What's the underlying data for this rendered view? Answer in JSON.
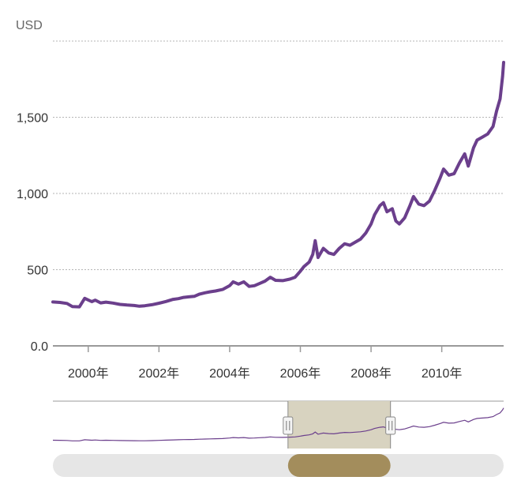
{
  "chart_data": {
    "type": "line",
    "ylabel": "USD",
    "ylim": [
      0,
      2000
    ],
    "y_ticks": [
      {
        "value": 0,
        "label": "0.0"
      },
      {
        "value": 500,
        "label": "500"
      },
      {
        "value": 1000,
        "label": "1,000"
      },
      {
        "value": 1500,
        "label": "1,500"
      },
      {
        "value": 2000,
        "label": ""
      }
    ],
    "x_ticks": [
      {
        "value": 2000,
        "label": "2000年"
      },
      {
        "value": 2002,
        "label": "2002年"
      },
      {
        "value": 2004,
        "label": "2004年"
      },
      {
        "value": 2006,
        "label": "2006年"
      },
      {
        "value": 2008,
        "label": "2008年"
      },
      {
        "value": 2010,
        "label": "2010年"
      }
    ],
    "xlim": [
      1999.0,
      2011.75
    ],
    "grid": true,
    "legend": "none",
    "series": [
      {
        "color": "#6b3f8c",
        "points": [
          [
            1999.0,
            288
          ],
          [
            1999.2,
            285
          ],
          [
            1999.4,
            278
          ],
          [
            1999.55,
            258
          ],
          [
            1999.75,
            256
          ],
          [
            1999.9,
            312
          ],
          [
            2000.1,
            290
          ],
          [
            2000.2,
            300
          ],
          [
            2000.35,
            282
          ],
          [
            2000.5,
            287
          ],
          [
            2000.7,
            281
          ],
          [
            2000.9,
            272
          ],
          [
            2001.1,
            268
          ],
          [
            2001.3,
            265
          ],
          [
            2001.45,
            260
          ],
          [
            2001.6,
            263
          ],
          [
            2001.8,
            270
          ],
          [
            2002.0,
            280
          ],
          [
            2002.2,
            291
          ],
          [
            2002.4,
            305
          ],
          [
            2002.55,
            310
          ],
          [
            2002.7,
            318
          ],
          [
            2002.85,
            322
          ],
          [
            2003.0,
            325
          ],
          [
            2003.15,
            340
          ],
          [
            2003.3,
            348
          ],
          [
            2003.45,
            355
          ],
          [
            2003.6,
            360
          ],
          [
            2003.8,
            370
          ],
          [
            2004.0,
            395
          ],
          [
            2004.1,
            420
          ],
          [
            2004.25,
            405
          ],
          [
            2004.4,
            420
          ],
          [
            2004.55,
            390
          ],
          [
            2004.7,
            395
          ],
          [
            2004.85,
            410
          ],
          [
            2005.0,
            425
          ],
          [
            2005.15,
            450
          ],
          [
            2005.3,
            430
          ],
          [
            2005.5,
            428
          ],
          [
            2005.7,
            438
          ],
          [
            2005.85,
            450
          ],
          [
            2006.0,
            490
          ],
          [
            2006.1,
            520
          ],
          [
            2006.25,
            550
          ],
          [
            2006.35,
            600
          ],
          [
            2006.42,
            690
          ],
          [
            2006.5,
            580
          ],
          [
            2006.65,
            640
          ],
          [
            2006.8,
            610
          ],
          [
            2006.95,
            600
          ],
          [
            2007.1,
            640
          ],
          [
            2007.25,
            670
          ],
          [
            2007.4,
            660
          ],
          [
            2007.55,
            680
          ],
          [
            2007.7,
            700
          ],
          [
            2007.85,
            740
          ],
          [
            2008.0,
            800
          ],
          [
            2008.1,
            860
          ],
          [
            2008.25,
            920
          ],
          [
            2008.35,
            940
          ],
          [
            2008.45,
            880
          ],
          [
            2008.6,
            900
          ],
          [
            2008.7,
            820
          ],
          [
            2008.8,
            800
          ],
          [
            2008.95,
            840
          ],
          [
            2009.1,
            920
          ],
          [
            2009.2,
            980
          ],
          [
            2009.35,
            930
          ],
          [
            2009.5,
            920
          ],
          [
            2009.65,
            950
          ],
          [
            2009.8,
            1020
          ],
          [
            2009.95,
            1100
          ],
          [
            2010.05,
            1160
          ],
          [
            2010.2,
            1120
          ],
          [
            2010.35,
            1130
          ],
          [
            2010.5,
            1200
          ],
          [
            2010.65,
            1260
          ],
          [
            2010.75,
            1180
          ],
          [
            2010.9,
            1300
          ],
          [
            2011.0,
            1350
          ],
          [
            2011.15,
            1370
          ],
          [
            2011.3,
            1390
          ],
          [
            2011.45,
            1440
          ],
          [
            2011.55,
            1540
          ],
          [
            2011.65,
            1620
          ],
          [
            2011.72,
            1770
          ],
          [
            2011.75,
            1860
          ]
        ]
      }
    ],
    "navigator": {
      "window_start": 2005.65,
      "window_end": 2008.55,
      "handle_icon": "grip-lines-icon"
    }
  }
}
